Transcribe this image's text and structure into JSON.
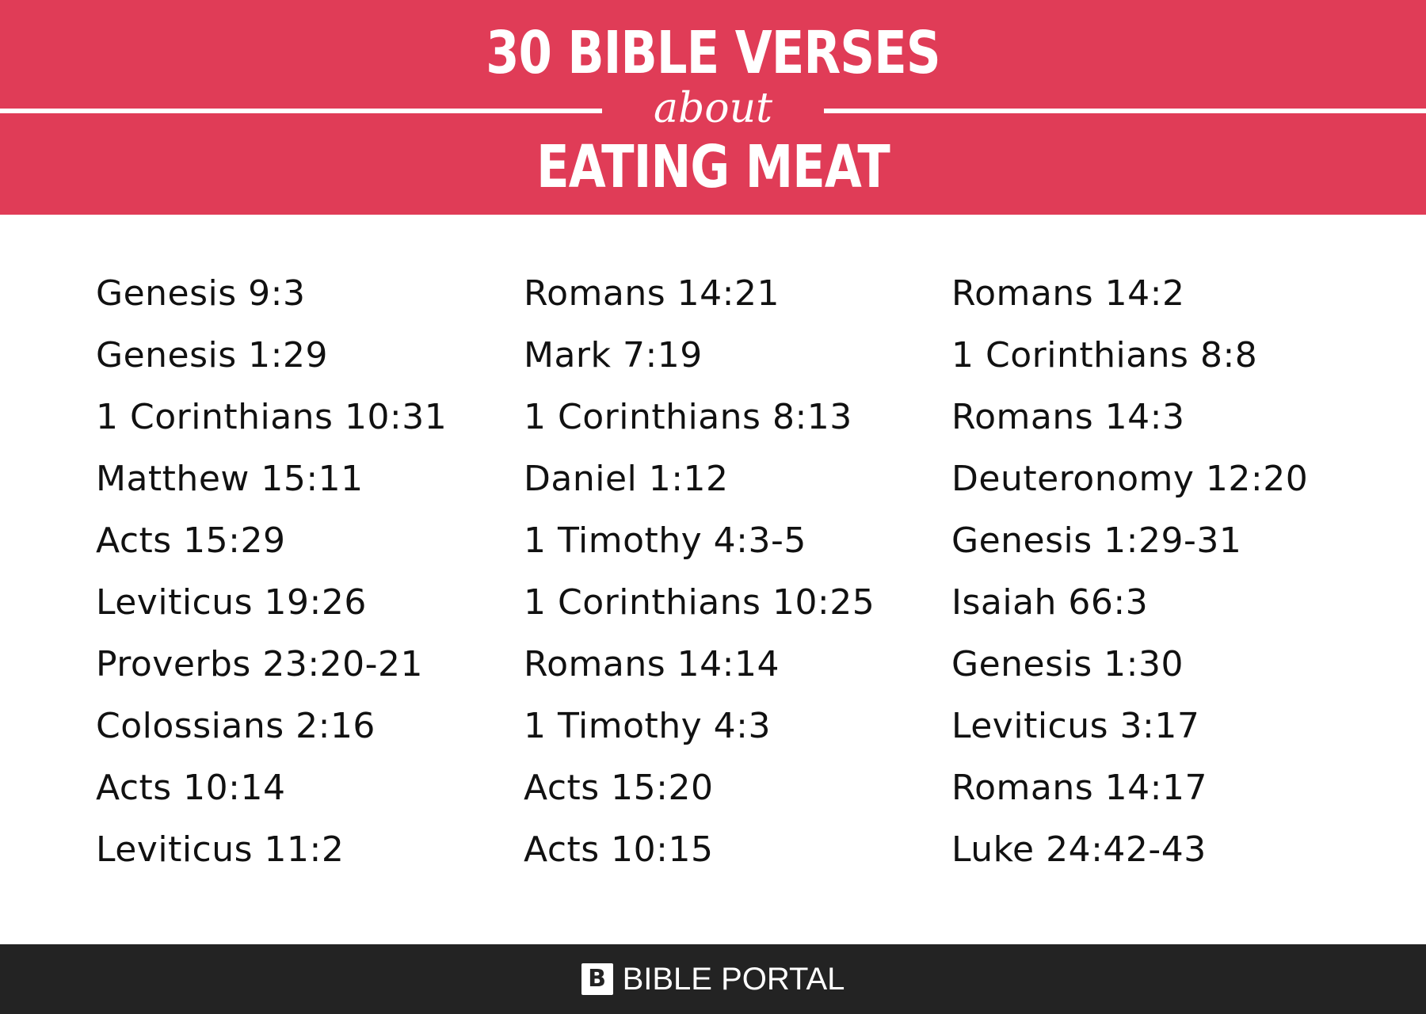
{
  "header": {
    "title_top": "30 BIBLE VERSES",
    "title_mid": "about",
    "title_bottom": "EATING MEAT",
    "background_color": "#e03c57"
  },
  "columns": [
    [
      "Genesis 9:3",
      "Genesis 1:29",
      "1 Corinthians 10:31",
      "Matthew 15:11",
      "Acts 15:29",
      "Leviticus 19:26",
      "Proverbs 23:20-21",
      "Colossians 2:16",
      "Acts 10:14",
      "Leviticus 11:2"
    ],
    [
      "Romans 14:21",
      "Mark 7:19",
      "1 Corinthians 8:13",
      "Daniel 1:12",
      "1 Timothy 4:3-5",
      "1 Corinthians 10:25",
      "Romans 14:14",
      "1 Timothy 4:3",
      "Acts 15:20",
      "Acts 10:15"
    ],
    [
      "Romans 14:2",
      "1 Corinthians 8:8",
      "Romans 14:3",
      "Deuteronomy 12:20",
      "Genesis 1:29-31",
      "Isaiah 66:3",
      "Genesis 1:30",
      "Leviticus 3:17",
      "Romans 14:17",
      "Luke 24:42-43"
    ]
  ],
  "footer": {
    "logo_letter": "B",
    "brand": "BIBLE PORTAL",
    "logo_icon": "book-logo-icon",
    "background_color": "#232323"
  }
}
